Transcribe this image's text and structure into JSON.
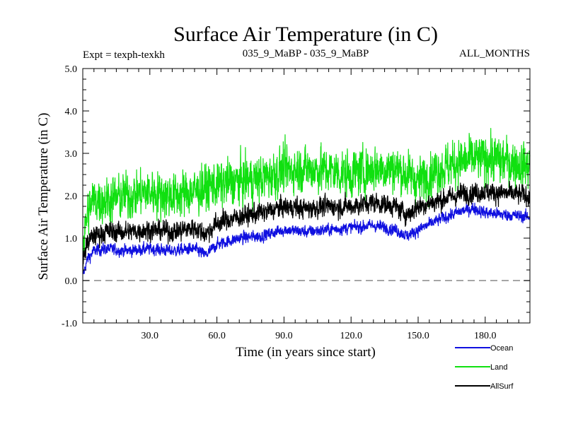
{
  "chart_data": {
    "type": "line",
    "title": "Surface Air Temperature (in C)",
    "subtitle_left": "Expt = texph-texkh",
    "subtitle_center": "035_9_MaBP - 035_9_MaBP",
    "subtitle_right": "ALL_MONTHS",
    "xlabel": "Time (in years since start)",
    "ylabel": "Surface Air Temperature (in C)",
    "xlim": [
      0,
      200
    ],
    "ylim": [
      -1.0,
      5.0
    ],
    "x_ticks": [
      30,
      60,
      90,
      120,
      150,
      180
    ],
    "x_tick_labels": [
      "30.0",
      "60.0",
      "90.0",
      "120.0",
      "150.0",
      "180.0"
    ],
    "y_ticks": [
      -1,
      0,
      1,
      2,
      3,
      4,
      5
    ],
    "y_tick_labels": [
      "-1.0",
      "0.0",
      "1.0",
      "2.0",
      "3.0",
      "4.0",
      "5.0"
    ],
    "zero_line": 0.0,
    "legend_position": "bottom-right",
    "series": [
      {
        "name": "Ocean",
        "color": "#1010e0",
        "x": [
          0,
          2,
          5,
          10,
          20,
          30,
          40,
          50,
          55,
          60,
          70,
          80,
          90,
          100,
          110,
          120,
          130,
          140,
          145,
          150,
          160,
          170,
          175,
          180,
          190,
          200
        ],
        "y": [
          0.1,
          0.5,
          0.7,
          0.75,
          0.7,
          0.75,
          0.7,
          0.75,
          0.6,
          0.85,
          1.0,
          1.05,
          1.2,
          1.15,
          1.2,
          1.25,
          1.3,
          1.2,
          1.05,
          1.2,
          1.45,
          1.65,
          1.7,
          1.6,
          1.55,
          1.5
        ]
      },
      {
        "name": "Land",
        "color": "#10e010",
        "x": [
          0,
          2,
          5,
          10,
          20,
          30,
          40,
          50,
          60,
          70,
          80,
          90,
          100,
          110,
          120,
          130,
          140,
          150,
          160,
          170,
          180,
          190,
          200
        ],
        "y": [
          0.7,
          1.6,
          1.9,
          1.9,
          2.0,
          2.1,
          2.0,
          2.1,
          2.25,
          2.35,
          2.4,
          2.6,
          2.65,
          2.6,
          2.5,
          2.65,
          2.65,
          2.35,
          2.65,
          2.8,
          2.9,
          2.8,
          2.7
        ]
      },
      {
        "name": "AllSurf",
        "color": "#000000",
        "x": [
          0,
          2,
          5,
          10,
          20,
          30,
          40,
          50,
          55,
          60,
          70,
          80,
          90,
          100,
          110,
          120,
          130,
          140,
          145,
          150,
          160,
          170,
          180,
          190,
          200
        ],
        "y": [
          0.4,
          0.9,
          1.05,
          1.15,
          1.15,
          1.2,
          1.15,
          1.25,
          1.1,
          1.35,
          1.5,
          1.6,
          1.75,
          1.7,
          1.75,
          1.75,
          1.85,
          1.75,
          1.55,
          1.75,
          1.9,
          2.05,
          2.1,
          2.05,
          2.0
        ]
      }
    ],
    "legend": [
      {
        "label": "Ocean",
        "color": "#1010e0"
      },
      {
        "label": "Land",
        "color": "#10e010"
      },
      {
        "label": "AllSurf",
        "color": "#000000"
      }
    ]
  }
}
